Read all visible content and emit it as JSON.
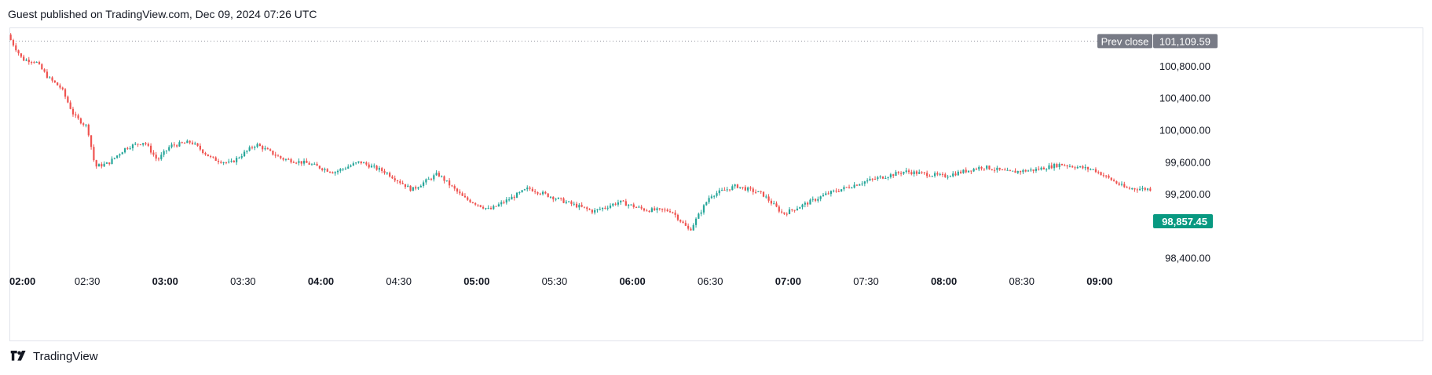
{
  "header": {
    "published_note": "Guest published on TradingView.com, Dec 09, 2024 07:26 UTC"
  },
  "brand": {
    "name": "TradingView"
  },
  "colors": {
    "up": "#26a69a",
    "down": "#ef5350",
    "price_tag_bg": "#089981",
    "prev_close_bg": "#787b86",
    "grid": "#e0e3eb"
  },
  "chart_data": {
    "type": "candlestick",
    "time_labels": [
      {
        "label": "02:00",
        "bold": true
      },
      {
        "label": "02:30",
        "bold": false
      },
      {
        "label": "03:00",
        "bold": true
      },
      {
        "label": "03:30",
        "bold": false
      },
      {
        "label": "04:00",
        "bold": true
      },
      {
        "label": "04:30",
        "bold": false
      },
      {
        "label": "05:00",
        "bold": true
      },
      {
        "label": "05:30",
        "bold": false
      },
      {
        "label": "06:00",
        "bold": true
      },
      {
        "label": "06:30",
        "bold": false
      },
      {
        "label": "07:00",
        "bold": true
      },
      {
        "label": "07:30",
        "bold": false
      },
      {
        "label": "08:00",
        "bold": true
      },
      {
        "label": "08:30",
        "bold": false
      },
      {
        "label": "09:00",
        "bold": true
      }
    ],
    "x_range_minutes": [
      0,
      440
    ],
    "y_ticks": [
      100800,
      100400,
      100000,
      99600,
      99200,
      98400
    ],
    "y_tick_labels": [
      "100,800.00",
      "100,400.00",
      "100,000.00",
      "99,600.00",
      "99,200.00",
      "98,400.00"
    ],
    "ylim": [
      98240,
      101280
    ],
    "prev_close": {
      "label": "Prev close",
      "value": 101109.59,
      "value_label": "101,109.59"
    },
    "last_price": {
      "value": 98857.45,
      "value_label": "98,857.45"
    },
    "price_path": [
      [
        0,
        101150
      ],
      [
        5,
        100880
      ],
      [
        10,
        100860
      ],
      [
        15,
        100650
      ],
      [
        20,
        100520
      ],
      [
        25,
        100170
      ],
      [
        30,
        100040
      ],
      [
        33,
        99540
      ],
      [
        38,
        99580
      ],
      [
        45,
        99780
      ],
      [
        52,
        99850
      ],
      [
        57,
        99620
      ],
      [
        62,
        99800
      ],
      [
        70,
        99850
      ],
      [
        78,
        99640
      ],
      [
        85,
        99580
      ],
      [
        95,
        99820
      ],
      [
        105,
        99640
      ],
      [
        115,
        99580
      ],
      [
        125,
        99470
      ],
      [
        135,
        99600
      ],
      [
        145,
        99470
      ],
      [
        155,
        99250
      ],
      [
        165,
        99450
      ],
      [
        175,
        99150
      ],
      [
        185,
        99000
      ],
      [
        200,
        99270
      ],
      [
        215,
        99090
      ],
      [
        225,
        98980
      ],
      [
        235,
        99100
      ],
      [
        245,
        99000
      ],
      [
        255,
        98990
      ],
      [
        262,
        98740
      ],
      [
        270,
        99180
      ],
      [
        280,
        99300
      ],
      [
        290,
        99200
      ],
      [
        298,
        98950
      ],
      [
        305,
        99050
      ],
      [
        315,
        99200
      ],
      [
        330,
        99360
      ],
      [
        345,
        99480
      ],
      [
        360,
        99420
      ],
      [
        375,
        99540
      ],
      [
        385,
        99470
      ],
      [
        395,
        99500
      ],
      [
        405,
        99570
      ],
      [
        418,
        99500
      ],
      [
        430,
        99270
      ],
      [
        440,
        99260
      ]
    ]
  }
}
